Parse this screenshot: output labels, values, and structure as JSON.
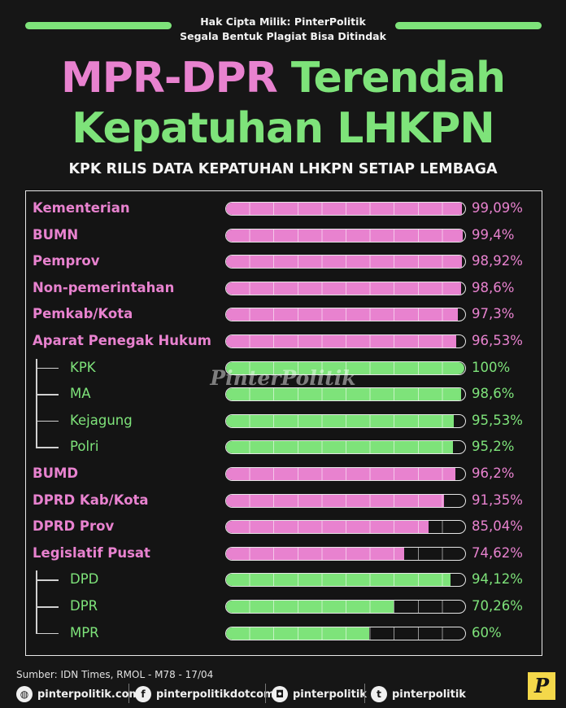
{
  "header": {
    "copyright_line1": "Hak Cipta Milik: PinterPolitik",
    "copyright_line2": "Segala Bentuk Plagiat Bisa Ditindak",
    "title_line1_part1": "MPR-DPR ",
    "title_line1_part2": "Terendah",
    "title_line2": "Kepatuhan LHKPN",
    "subtitle": "KPK RILIS DATA KEPATUHAN LHKPN SETIAP LEMBAGA"
  },
  "watermark": "PinterPolitik",
  "colors": {
    "pink": "#e882cf",
    "green": "#7ee37a",
    "background": "#161616"
  },
  "chart_data": {
    "type": "bar",
    "orientation": "horizontal",
    "xlim": [
      0,
      100
    ],
    "unit": "%",
    "categories": [
      "Kementerian",
      "BUMN",
      "Pemprov",
      "Non-pemerintahan",
      "Pemkab/Kota",
      "Aparat Penegak Hukum",
      "KPK",
      "MA",
      "Kejagung",
      "Polri",
      "BUMD",
      "DPRD Kab/Kota",
      "DPRD Prov",
      "Legislatif Pusat",
      "DPD",
      "DPR",
      "MPR"
    ],
    "values": [
      99.09,
      99.4,
      98.92,
      98.6,
      97.3,
      96.53,
      100,
      98.6,
      95.53,
      95.2,
      96.2,
      91.35,
      85.04,
      74.62,
      94.12,
      70.26,
      60
    ],
    "value_labels": [
      "99,09%",
      "99,4%",
      "98,92%",
      "98,6%",
      "97,3%",
      "96,53%",
      "100%",
      "98,6%",
      "95,53%",
      "95,2%",
      "96,2%",
      "91,35%",
      "85,04%",
      "74,62%",
      "94,12%",
      "70,26%",
      "60%"
    ],
    "sub_item": [
      false,
      false,
      false,
      false,
      false,
      false,
      true,
      true,
      true,
      true,
      false,
      false,
      false,
      false,
      true,
      true,
      true
    ]
  },
  "footer": {
    "source": "Sumber: IDN Times, RMOL - M78 - 17/04",
    "website": "pinterpolitik.com",
    "facebook": "pinterpolitikdotcom",
    "instagram": "pinterpolitik",
    "twitter": "pinterpolitik",
    "logo_letter": "P"
  }
}
